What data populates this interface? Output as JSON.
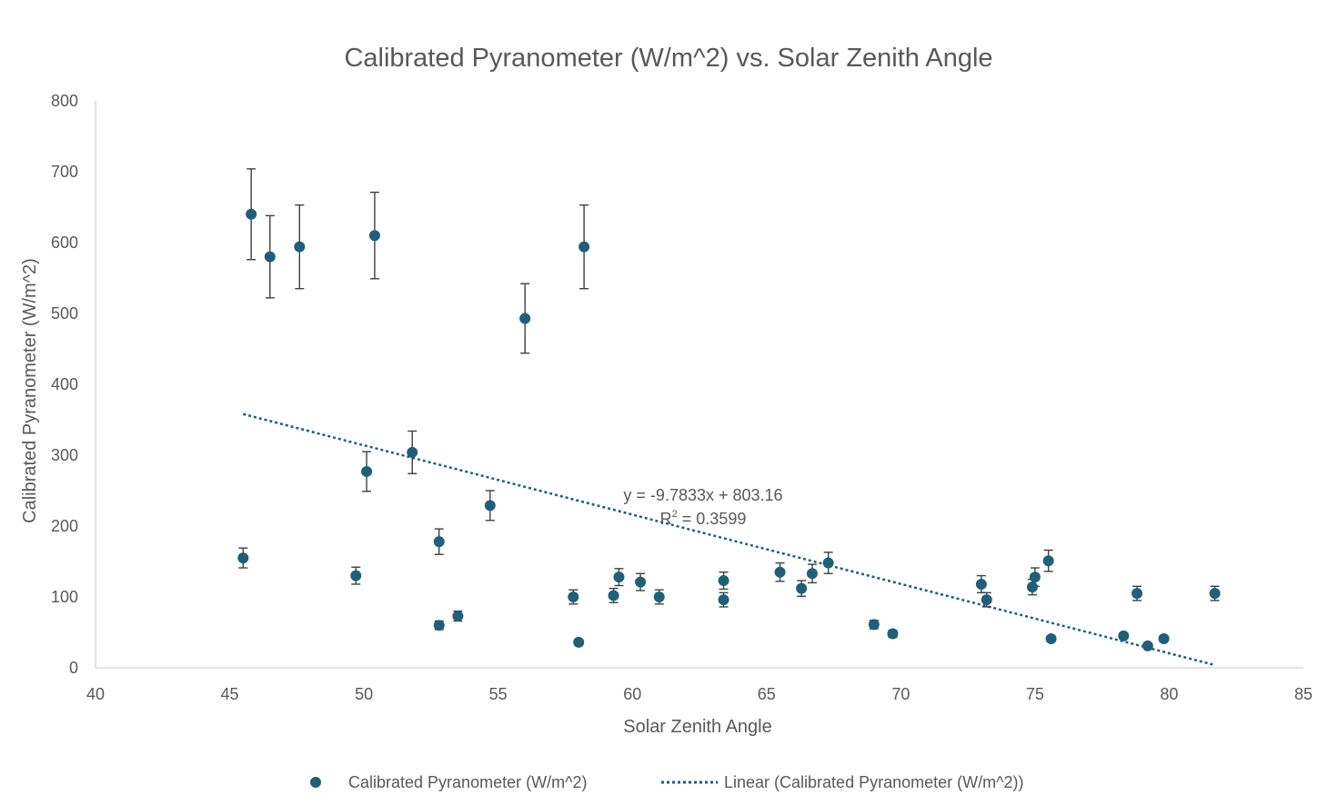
{
  "chart_data": {
    "type": "scatter",
    "title": "Calibrated Pyranometer (W/m^2) vs. Solar Zenith Angle",
    "xlabel": "Solar Zenith Angle",
    "ylabel": "Calibrated Pyranometer (W/m^2)",
    "xlim": [
      40,
      85
    ],
    "ylim": [
      0,
      800
    ],
    "xticks": [
      40,
      45,
      50,
      55,
      60,
      65,
      70,
      75,
      80,
      85
    ],
    "yticks": [
      0,
      100,
      200,
      300,
      400,
      500,
      600,
      700,
      800
    ],
    "grid": false,
    "legend_position": "bottom",
    "series": [
      {
        "name": "Calibrated Pyranometer (W/m^2)",
        "color": "#1f5f7a",
        "points": [
          {
            "x": 45.5,
            "y": 155,
            "err": 14
          },
          {
            "x": 45.8,
            "y": 640,
            "err": 64
          },
          {
            "x": 46.5,
            "y": 580,
            "err": 58
          },
          {
            "x": 47.6,
            "y": 594,
            "err": 59
          },
          {
            "x": 49.7,
            "y": 130,
            "err": 12
          },
          {
            "x": 50.1,
            "y": 277,
            "err": 28
          },
          {
            "x": 50.4,
            "y": 610,
            "err": 61
          },
          {
            "x": 51.8,
            "y": 304,
            "err": 30
          },
          {
            "x": 52.8,
            "y": 178,
            "err": 18
          },
          {
            "x": 52.8,
            "y": 60,
            "err": 6
          },
          {
            "x": 53.5,
            "y": 73,
            "err": 7
          },
          {
            "x": 54.7,
            "y": 229,
            "err": 21
          },
          {
            "x": 56.0,
            "y": 493,
            "err": 49
          },
          {
            "x": 57.8,
            "y": 100,
            "err": 10
          },
          {
            "x": 58.0,
            "y": 36,
            "err": 4
          },
          {
            "x": 58.2,
            "y": 594,
            "err": 59
          },
          {
            "x": 59.3,
            "y": 102,
            "err": 10
          },
          {
            "x": 59.5,
            "y": 128,
            "err": 12
          },
          {
            "x": 60.3,
            "y": 121,
            "err": 12
          },
          {
            "x": 61.0,
            "y": 100,
            "err": 10
          },
          {
            "x": 63.4,
            "y": 123,
            "err": 12
          },
          {
            "x": 63.4,
            "y": 96,
            "err": 10
          },
          {
            "x": 65.5,
            "y": 135,
            "err": 13
          },
          {
            "x": 66.3,
            "y": 112,
            "err": 11
          },
          {
            "x": 66.7,
            "y": 133,
            "err": 13
          },
          {
            "x": 67.3,
            "y": 148,
            "err": 15
          },
          {
            "x": 69.0,
            "y": 61,
            "err": 6
          },
          {
            "x": 69.7,
            "y": 48,
            "err": 5
          },
          {
            "x": 73.0,
            "y": 118,
            "err": 12
          },
          {
            "x": 73.2,
            "y": 96,
            "err": 10
          },
          {
            "x": 74.9,
            "y": 114,
            "err": 11
          },
          {
            "x": 75.0,
            "y": 128,
            "err": 13
          },
          {
            "x": 75.5,
            "y": 151,
            "err": 15
          },
          {
            "x": 75.6,
            "y": 41,
            "err": 4
          },
          {
            "x": 78.3,
            "y": 45,
            "err": 4
          },
          {
            "x": 78.8,
            "y": 105,
            "err": 10
          },
          {
            "x": 79.2,
            "y": 31,
            "err": 3
          },
          {
            "x": 79.8,
            "y": 41,
            "err": 4
          },
          {
            "x": 81.7,
            "y": 105,
            "err": 10
          }
        ]
      }
    ],
    "trendline": {
      "name": "Linear (Calibrated Pyranometer (W/m^2))",
      "slope": -9.7833,
      "intercept": 803.16,
      "x_range": [
        45.5,
        81.7
      ],
      "equation_label": "y = -9.7833x + 803.16",
      "r2_label_prefix": "R",
      "r2_label_sup": "2",
      "r2_label_suffix": " = 0.3599"
    }
  }
}
